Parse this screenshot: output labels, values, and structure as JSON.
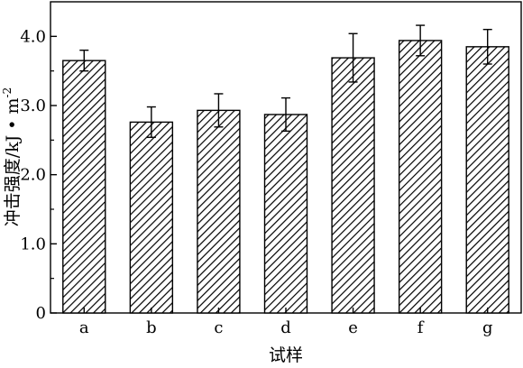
{
  "chart_data": {
    "type": "bar",
    "title": "",
    "xlabel": "试样",
    "ylabel": "冲击强度/kJ • m",
    "ylabel_superscript": "-2",
    "categories": [
      "a",
      "b",
      "c",
      "d",
      "e",
      "f",
      "g"
    ],
    "values": [
      3.65,
      2.76,
      2.93,
      2.87,
      3.69,
      3.94,
      3.85
    ],
    "error": [
      0.15,
      0.22,
      0.24,
      0.24,
      0.35,
      0.22,
      0.25
    ],
    "ylim": [
      0,
      4.5
    ],
    "yticks": [
      0,
      1.0,
      2.0,
      3.0,
      4.0
    ],
    "ytick_labels": [
      "0",
      "1.0",
      "2.0",
      "3.0",
      "4.0"
    ],
    "grid": false,
    "legend": "none",
    "bar_fill": "hatched",
    "colors": {
      "bar_stroke": "#000000",
      "hatch": "#000000",
      "background": "#ffffff"
    }
  }
}
